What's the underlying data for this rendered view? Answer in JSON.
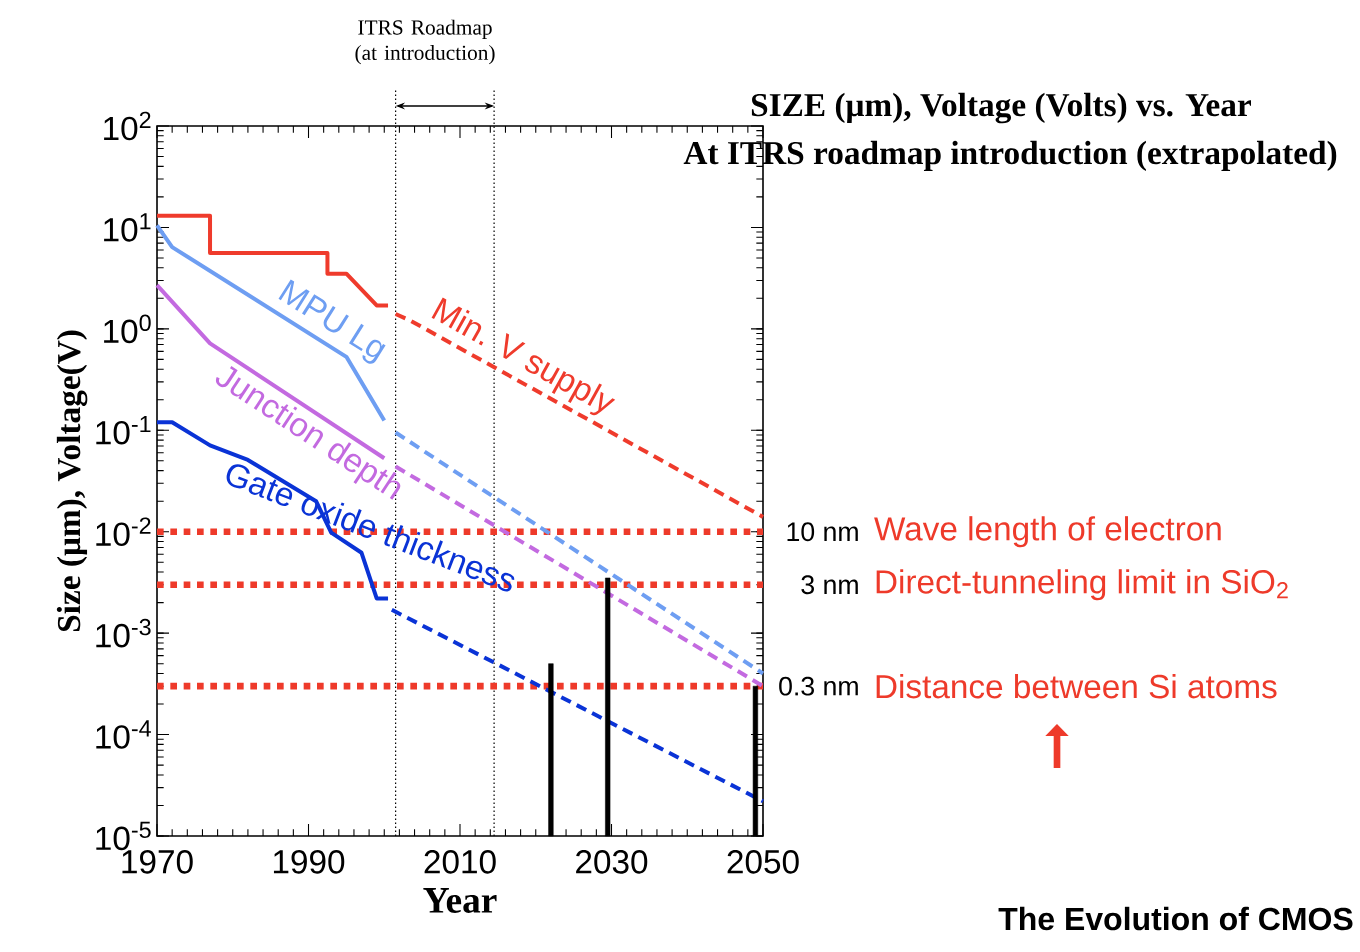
{
  "chart_data": {
    "type": "line",
    "title": "SIZE (μm), Voltage (Volts) vs. Year",
    "subtitle": "At ITRS roadmap introduction (extrapolated)",
    "xlabel": "Year",
    "ylabel": "Size (μm), Voltage(V)",
    "log": "y",
    "marker": "none",
    "xlim": [
      1970,
      2050
    ],
    "ylim": [
      1e-05,
      100
    ],
    "xticks": [
      1970,
      1990,
      2010,
      2030,
      2050
    ],
    "yticks": [
      {
        "value": 1e-05,
        "label": "10$^{-5}$"
      },
      {
        "value": 0.0001,
        "label": "10$^{-4}$"
      },
      {
        "value": 0.001,
        "label": "10$^{-3}$"
      },
      {
        "value": 0.01,
        "label": "10$^{-2}$"
      },
      {
        "value": 0.1,
        "label": "10$^{-1}$"
      },
      {
        "value": 1,
        "label": "10$^{0}$"
      },
      {
        "value": 10,
        "label": "10$^{1}$"
      },
      {
        "value": 100,
        "label": "10$^{2}$"
      }
    ],
    "series": [
      {
        "line_style": "solid",
        "color": "#ef3b2c",
        "x": [
          1970,
          1977,
          1977,
          1992.5,
          1992.5,
          1995,
          1999,
          2000.5
        ],
        "values": [
          13,
          13,
          5.6,
          5.6,
          3.5,
          3.5,
          1.7,
          1.7
        ]
      },
      {
        "line_style": "dashed",
        "color": "#ef3b2c",
        "name": "Min. V supply",
        "x": [
          2001.5,
          2003.5,
          2050
        ],
        "values": [
          1.4,
          1.2,
          0.014
        ]
      },
      {
        "line_style": "solid",
        "color": "#6e9ef2",
        "name": "MPU Lg",
        "x": [
          1970,
          1972,
          1995,
          2000
        ],
        "values": [
          10.5,
          6.4,
          0.53,
          0.125
        ]
      },
      {
        "line_style": "dashed",
        "color": "#6e9ef2",
        "x": [
          2001.5,
          2050
        ],
        "values": [
          0.095,
          0.0004
        ]
      },
      {
        "line_style": "solid",
        "color": "#c36ae0",
        "name": "Junction depth",
        "x": [
          1970,
          1977,
          2000
        ],
        "values": [
          2.7,
          0.72,
          0.053
        ]
      },
      {
        "line_style": "dashed",
        "color": "#c36ae0",
        "x": [
          2001.5,
          2050
        ],
        "values": [
          0.044,
          0.0003
        ]
      },
      {
        "line_style": "solid",
        "color": "#0a33d6",
        "name": "Gate oxide thickness",
        "x": [
          1970,
          1972,
          1977,
          1982,
          1991,
          1993,
          1997,
          1999,
          2000.5
        ],
        "values": [
          0.12,
          0.12,
          0.071,
          0.051,
          0.02,
          0.0098,
          0.0062,
          0.0022,
          0.0022
        ]
      },
      {
        "line_style": "dashed",
        "color": "#0a33d6",
        "x": [
          2001,
          2050
        ],
        "values": [
          0.0017,
          2.2e-05
        ]
      },
      {
        "type": "bar",
        "color": "#000000",
        "x": [
          2022,
          2029.5,
          2049
        ],
        "values": [
          0.0005,
          0.0035,
          0.0003
        ]
      }
    ],
    "ref_lines": [
      {
        "axis": "x",
        "value": 2001.5,
        "color": "#000000",
        "line_style": "dotted"
      },
      {
        "axis": "x",
        "value": 2014.5,
        "color": "#000000",
        "line_style": "dotted"
      },
      {
        "axis": "y",
        "value": 0.01,
        "label": "10 nm",
        "color": "#ee3a2a",
        "line_style": "dotted"
      },
      {
        "axis": "y",
        "value": 0.003,
        "label": "3 nm",
        "color": "#ee3a2a",
        "line_style": "dotted"
      },
      {
        "axis": "y",
        "value": 0.0003,
        "label": "0.3 nm",
        "color": "#ee3a2a",
        "line_style": "dotted"
      }
    ],
    "annotations": [
      "ITRS Roadmap (at introduction)",
      "The Evolution of CMOS",
      "Wave length of electron",
      "Direct-tunneling limit in SiO$_{2}$",
      "Distance between Si atoms"
    ]
  }
}
